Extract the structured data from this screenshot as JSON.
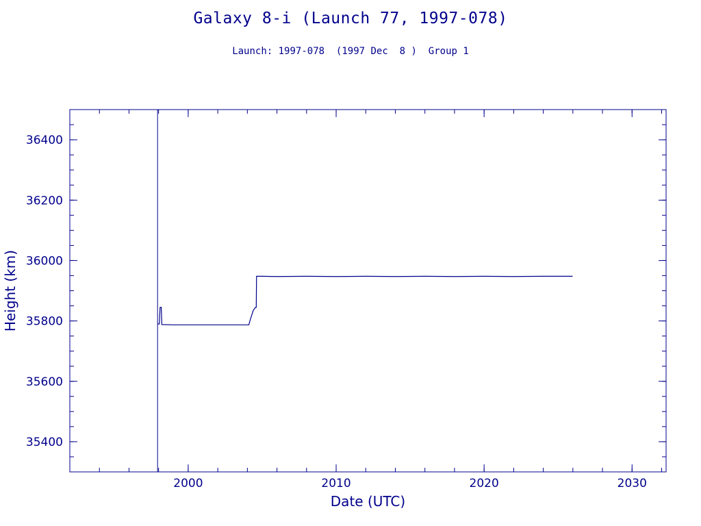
{
  "colors": {
    "ink": "#00008b",
    "background": "#ffffff"
  },
  "chart_data": {
    "type": "line",
    "title": "Galaxy 8-i (Launch 77, 1997-078)",
    "subtitle": "Launch: 1997-078  (1997 Dec  8 )  Group 1",
    "xlabel": "Date (UTC)",
    "ylabel": "Height (km)",
    "xlim": [
      1992.0,
      2032.3
    ],
    "ylim": [
      35300,
      36500
    ],
    "x_ticks": [
      2000,
      2010,
      2020,
      2030
    ],
    "y_ticks": [
      35400,
      35600,
      35800,
      36000,
      36200,
      36400
    ],
    "x_minor_step": 2,
    "y_minor_step": 50,
    "grid": false,
    "launch_marker_x": 1997.93,
    "series": [
      {
        "values": [
          [
            1997.93,
            35790
          ],
          [
            1998.05,
            35790
          ],
          [
            1998.1,
            35845
          ],
          [
            1998.18,
            35845
          ],
          [
            1998.22,
            35788
          ],
          [
            1999.0,
            35787
          ],
          [
            2000.0,
            35787
          ],
          [
            2001.0,
            35787
          ],
          [
            2002.0,
            35787
          ],
          [
            2003.0,
            35787
          ],
          [
            2004.0,
            35787
          ],
          [
            2004.1,
            35787
          ],
          [
            2004.2,
            35805
          ],
          [
            2004.4,
            35835
          ],
          [
            2004.55,
            35845
          ],
          [
            2004.6,
            35845
          ],
          [
            2004.62,
            35948
          ],
          [
            2005.0,
            35948
          ],
          [
            2006.0,
            35947
          ],
          [
            2008.0,
            35948
          ],
          [
            2010.0,
            35947
          ],
          [
            2012.0,
            35948
          ],
          [
            2014.0,
            35947
          ],
          [
            2016.0,
            35948
          ],
          [
            2018.0,
            35947
          ],
          [
            2020.0,
            35948
          ],
          [
            2022.0,
            35947
          ],
          [
            2024.0,
            35948
          ],
          [
            2025.98,
            35948
          ]
        ]
      }
    ]
  }
}
